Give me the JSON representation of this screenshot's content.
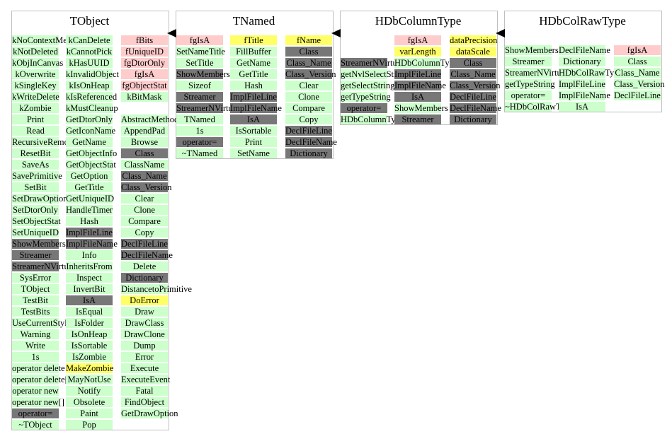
{
  "classes": [
    {
      "title": "TObject",
      "columns": [
        [
          {
            "t": "kNoContextMenu",
            "c": "g"
          },
          {
            "t": "kNotDeleted",
            "c": "g"
          },
          {
            "t": "kObjInCanvas",
            "c": "g"
          },
          {
            "t": "kOverwrite",
            "c": "g"
          },
          {
            "t": "kSingleKey",
            "c": "g"
          },
          {
            "t": "kWriteDelete",
            "c": "g"
          },
          {
            "t": "kZombie",
            "c": "g"
          },
          {
            "t": "Print",
            "c": "g"
          },
          {
            "t": "Read",
            "c": "g"
          },
          {
            "t": "RecursiveRemove",
            "c": "g"
          },
          {
            "t": "ResetBit",
            "c": "g"
          },
          {
            "t": "SaveAs",
            "c": "g"
          },
          {
            "t": "SavePrimitive",
            "c": "g"
          },
          {
            "t": "SetBit",
            "c": "g"
          },
          {
            "t": "SetDrawOption",
            "c": "g"
          },
          {
            "t": "SetDtorOnly",
            "c": "g"
          },
          {
            "t": "SetObjectStat",
            "c": "g"
          },
          {
            "t": "SetUniqueID",
            "c": "g"
          },
          {
            "t": "ShowMembers",
            "c": "d"
          },
          {
            "t": "Streamer",
            "c": "d"
          },
          {
            "t": "StreamerNVirtual",
            "c": "d"
          },
          {
            "t": "SysError",
            "c": "g"
          },
          {
            "t": "TObject",
            "c": "g"
          },
          {
            "t": "TestBit",
            "c": "g"
          },
          {
            "t": "TestBits",
            "c": "g"
          },
          {
            "t": "UseCurrentStyle",
            "c": "g"
          },
          {
            "t": "Warning",
            "c": "g"
          },
          {
            "t": "Write",
            "c": "g"
          },
          {
            "t": "1s",
            "c": "g"
          },
          {
            "t": "operator delete",
            "c": "g"
          },
          {
            "t": "operator delete[]",
            "c": "g"
          },
          {
            "t": "operator new",
            "c": "g"
          },
          {
            "t": "operator new[]",
            "c": "g"
          },
          {
            "t": "operator=",
            "c": "d"
          },
          {
            "t": "~TObject",
            "c": "g"
          }
        ],
        [
          {
            "t": "kCanDelete",
            "c": "g"
          },
          {
            "t": "kCannotPick",
            "c": "g"
          },
          {
            "t": "kHasUUID",
            "c": "g"
          },
          {
            "t": "kInvalidObject",
            "c": "g"
          },
          {
            "t": "kIsOnHeap",
            "c": "g"
          },
          {
            "t": "kIsReferenced",
            "c": "g"
          },
          {
            "t": "kMustCleanup",
            "c": "g"
          },
          {
            "t": "GetDtorOnly",
            "c": "g"
          },
          {
            "t": "GetIconName",
            "c": "g"
          },
          {
            "t": "GetName",
            "c": "g"
          },
          {
            "t": "GetObjectInfo",
            "c": "g"
          },
          {
            "t": "GetObjectStat",
            "c": "g"
          },
          {
            "t": "GetOption",
            "c": "g"
          },
          {
            "t": "GetTitle",
            "c": "g"
          },
          {
            "t": "GetUniqueID",
            "c": "g"
          },
          {
            "t": "HandleTimer",
            "c": "g"
          },
          {
            "t": "Hash",
            "c": "g"
          },
          {
            "t": "ImplFileLine",
            "c": "d"
          },
          {
            "t": "ImplFileName",
            "c": "d"
          },
          {
            "t": "Info",
            "c": "g"
          },
          {
            "t": "InheritsFrom",
            "c": "g"
          },
          {
            "t": "Inspect",
            "c": "g"
          },
          {
            "t": "InvertBit",
            "c": "g"
          },
          {
            "t": "IsA",
            "c": "d"
          },
          {
            "t": "IsEqual",
            "c": "g"
          },
          {
            "t": "IsFolder",
            "c": "g"
          },
          {
            "t": "IsOnHeap",
            "c": "g"
          },
          {
            "t": "IsSortable",
            "c": "g"
          },
          {
            "t": "IsZombie",
            "c": "g"
          },
          {
            "t": "MakeZombie",
            "c": "y"
          },
          {
            "t": "MayNotUse",
            "c": "g"
          },
          {
            "t": "Notify",
            "c": "g"
          },
          {
            "t": "Obsolete",
            "c": "g"
          },
          {
            "t": "Paint",
            "c": "g"
          },
          {
            "t": "Pop",
            "c": "g"
          }
        ],
        [
          {
            "t": "fBits",
            "c": "p"
          },
          {
            "t": "fUniqueID",
            "c": "p"
          },
          {
            "t": "fgDtorOnly",
            "c": "p"
          },
          {
            "t": "fgIsA",
            "c": "p"
          },
          {
            "t": "fgObjectStat",
            "c": "p"
          },
          {
            "t": "kBitMask",
            "c": "g"
          },
          {
            "t": "",
            "c": ""
          },
          {
            "t": "AbstractMethod",
            "c": "g"
          },
          {
            "t": "AppendPad",
            "c": "g"
          },
          {
            "t": "Browse",
            "c": "g"
          },
          {
            "t": "Class",
            "c": "d"
          },
          {
            "t": "ClassName",
            "c": "g"
          },
          {
            "t": "Class_Name",
            "c": "d"
          },
          {
            "t": "Class_Version",
            "c": "d"
          },
          {
            "t": "Clear",
            "c": "g"
          },
          {
            "t": "Clone",
            "c": "g"
          },
          {
            "t": "Compare",
            "c": "g"
          },
          {
            "t": "Copy",
            "c": "g"
          },
          {
            "t": "DeclFileLine",
            "c": "d"
          },
          {
            "t": "DeclFileName",
            "c": "d"
          },
          {
            "t": "Delete",
            "c": "g"
          },
          {
            "t": "Dictionary",
            "c": "d"
          },
          {
            "t": "DistancetoPrimitive",
            "c": "g"
          },
          {
            "t": "DoError",
            "c": "y"
          },
          {
            "t": "Draw",
            "c": "g"
          },
          {
            "t": "DrawClass",
            "c": "g"
          },
          {
            "t": "DrawClone",
            "c": "g"
          },
          {
            "t": "Dump",
            "c": "g"
          },
          {
            "t": "Error",
            "c": "g"
          },
          {
            "t": "Execute",
            "c": "g"
          },
          {
            "t": "ExecuteEvent",
            "c": "g"
          },
          {
            "t": "Fatal",
            "c": "g"
          },
          {
            "t": "FindObject",
            "c": "g"
          },
          {
            "t": "GetDrawOption",
            "c": "g"
          }
        ]
      ]
    },
    {
      "title": "TNamed",
      "columns": [
        [
          {
            "t": "fgIsA",
            "c": "p"
          },
          {
            "t": "SetNameTitle",
            "c": "g"
          },
          {
            "t": "SetTitle",
            "c": "g"
          },
          {
            "t": "ShowMembers",
            "c": "d"
          },
          {
            "t": "Sizeof",
            "c": "g"
          },
          {
            "t": "Streamer",
            "c": "d"
          },
          {
            "t": "StreamerNVirtual",
            "c": "d"
          },
          {
            "t": "TNamed",
            "c": "g"
          },
          {
            "t": "1s",
            "c": "g"
          },
          {
            "t": "operator=",
            "c": "d"
          },
          {
            "t": "~TNamed",
            "c": "g"
          }
        ],
        [
          {
            "t": "fTitle",
            "c": "y"
          },
          {
            "t": "FillBuffer",
            "c": "g"
          },
          {
            "t": "GetName",
            "c": "g"
          },
          {
            "t": "GetTitle",
            "c": "g"
          },
          {
            "t": "Hash",
            "c": "g"
          },
          {
            "t": "ImplFileLine",
            "c": "d"
          },
          {
            "t": "ImplFileName",
            "c": "d"
          },
          {
            "t": "IsA",
            "c": "d"
          },
          {
            "t": "IsSortable",
            "c": "g"
          },
          {
            "t": "Print",
            "c": "g"
          },
          {
            "t": "SetName",
            "c": "g"
          }
        ],
        [
          {
            "t": "fName",
            "c": "y"
          },
          {
            "t": "Class",
            "c": "d"
          },
          {
            "t": "Class_Name",
            "c": "d"
          },
          {
            "t": "Class_Version",
            "c": "d"
          },
          {
            "t": "Clear",
            "c": "g"
          },
          {
            "t": "Clone",
            "c": "g"
          },
          {
            "t": "Compare",
            "c": "g"
          },
          {
            "t": "Copy",
            "c": "g"
          },
          {
            "t": "DeclFileLine",
            "c": "d"
          },
          {
            "t": "DeclFileName",
            "c": "d"
          },
          {
            "t": "Dictionary",
            "c": "d"
          }
        ]
      ]
    },
    {
      "title": "HDbColumnType",
      "columns": [
        [
          {
            "t": "",
            "c": ""
          },
          {
            "t": "",
            "c": ""
          },
          {
            "t": "StreamerNVirtual",
            "c": "d"
          },
          {
            "t": "getNvlSelectString",
            "c": "g"
          },
          {
            "t": "getSelectString",
            "c": "g"
          },
          {
            "t": "getTypeString",
            "c": "g"
          },
          {
            "t": "operator=",
            "c": "d"
          },
          {
            "t": "HDbColumnType",
            "c": "g"
          }
        ],
        [
          {
            "t": "fgIsA",
            "c": "p"
          },
          {
            "t": "varLength",
            "c": "y"
          },
          {
            "t": "HDbColumnType",
            "c": "g"
          },
          {
            "t": "ImplFileLine",
            "c": "d"
          },
          {
            "t": "ImplFileName",
            "c": "d"
          },
          {
            "t": "IsA",
            "c": "d"
          },
          {
            "t": "ShowMembers",
            "c": "g"
          },
          {
            "t": "Streamer",
            "c": "d"
          }
        ],
        [
          {
            "t": "dataPrecision",
            "c": "y"
          },
          {
            "t": "dataScale",
            "c": "y"
          },
          {
            "t": "Class",
            "c": "d"
          },
          {
            "t": "Class_Name",
            "c": "d"
          },
          {
            "t": "Class_Version",
            "c": "d"
          },
          {
            "t": "DeclFileLine",
            "c": "d"
          },
          {
            "t": "DeclFileName",
            "c": "d"
          },
          {
            "t": "Dictionary",
            "c": "d"
          }
        ]
      ]
    },
    {
      "title": "HDbColRawType",
      "columns": [
        [
          {
            "t": "ShowMembers",
            "c": "g"
          },
          {
            "t": "Streamer",
            "c": "g"
          },
          {
            "t": "StreamerNVirtual",
            "c": "g"
          },
          {
            "t": "getTypeString",
            "c": "g"
          },
          {
            "t": "operator=",
            "c": "g"
          },
          {
            "t": "~HDbColRawType",
            "c": "g"
          }
        ],
        [
          {
            "t": "DeclFileName",
            "c": "g"
          },
          {
            "t": "Dictionary",
            "c": "g"
          },
          {
            "t": "HDbColRawType",
            "c": "g"
          },
          {
            "t": "ImplFileLine",
            "c": "g"
          },
          {
            "t": "ImplFileName",
            "c": "g"
          },
          {
            "t": "IsA",
            "c": "g"
          }
        ],
        [
          {
            "t": "fgIsA",
            "c": "p"
          },
          {
            "t": "Class",
            "c": "g"
          },
          {
            "t": "Class_Name",
            "c": "g"
          },
          {
            "t": "Class_Version",
            "c": "g"
          },
          {
            "t": "DeclFileLine",
            "c": "g"
          }
        ]
      ]
    }
  ],
  "colors": {
    "green": "#ccffcc",
    "pink": "#ffcccc",
    "yellow": "#ffff66",
    "gray": "#777777"
  }
}
